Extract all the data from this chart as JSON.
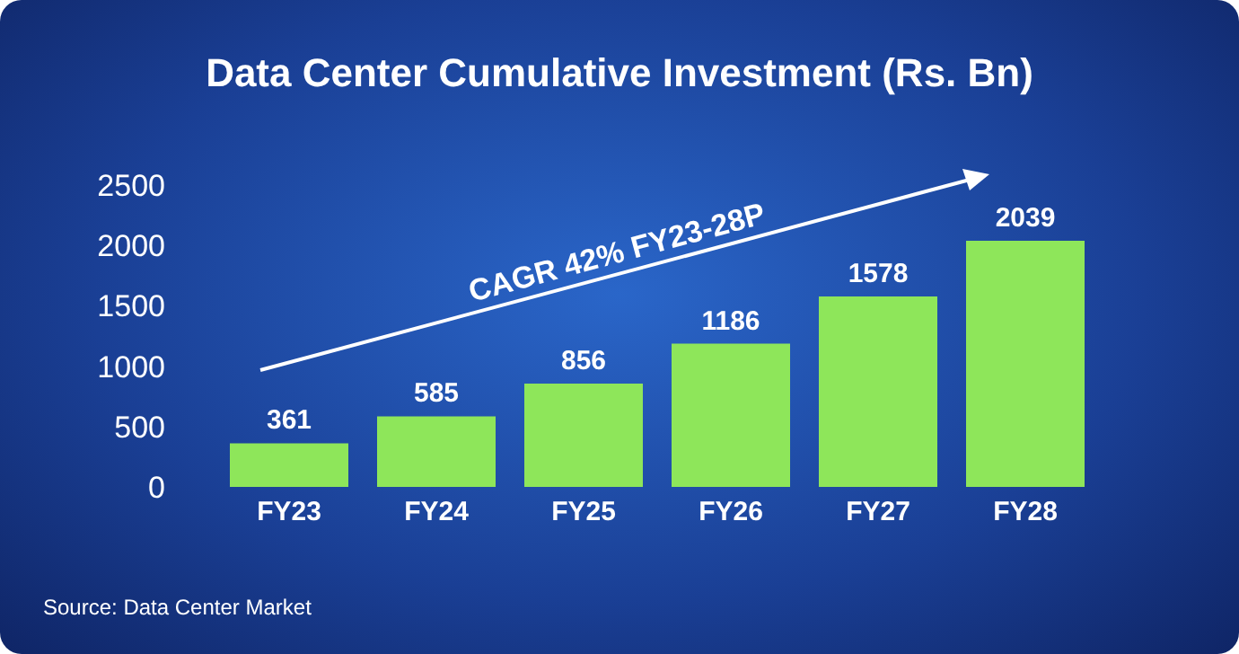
{
  "chart_data": {
    "type": "bar",
    "title": "Data Center Cumulative Investment (Rs. Bn)",
    "categories": [
      "FY23",
      "FY24",
      "FY25",
      "FY26",
      "FY27",
      "FY28"
    ],
    "values": [
      361,
      585,
      856,
      1186,
      1578,
      2039
    ],
    "color": "#8ee65a",
    "ylim": [
      0,
      2500
    ],
    "yticks": [
      0,
      500,
      1000,
      1500,
      2000,
      2500
    ],
    "grid": false,
    "data_labels": true,
    "annotations": [
      "CAGR 42% FY23-28P",
      "Source: Data Center Market"
    ]
  }
}
